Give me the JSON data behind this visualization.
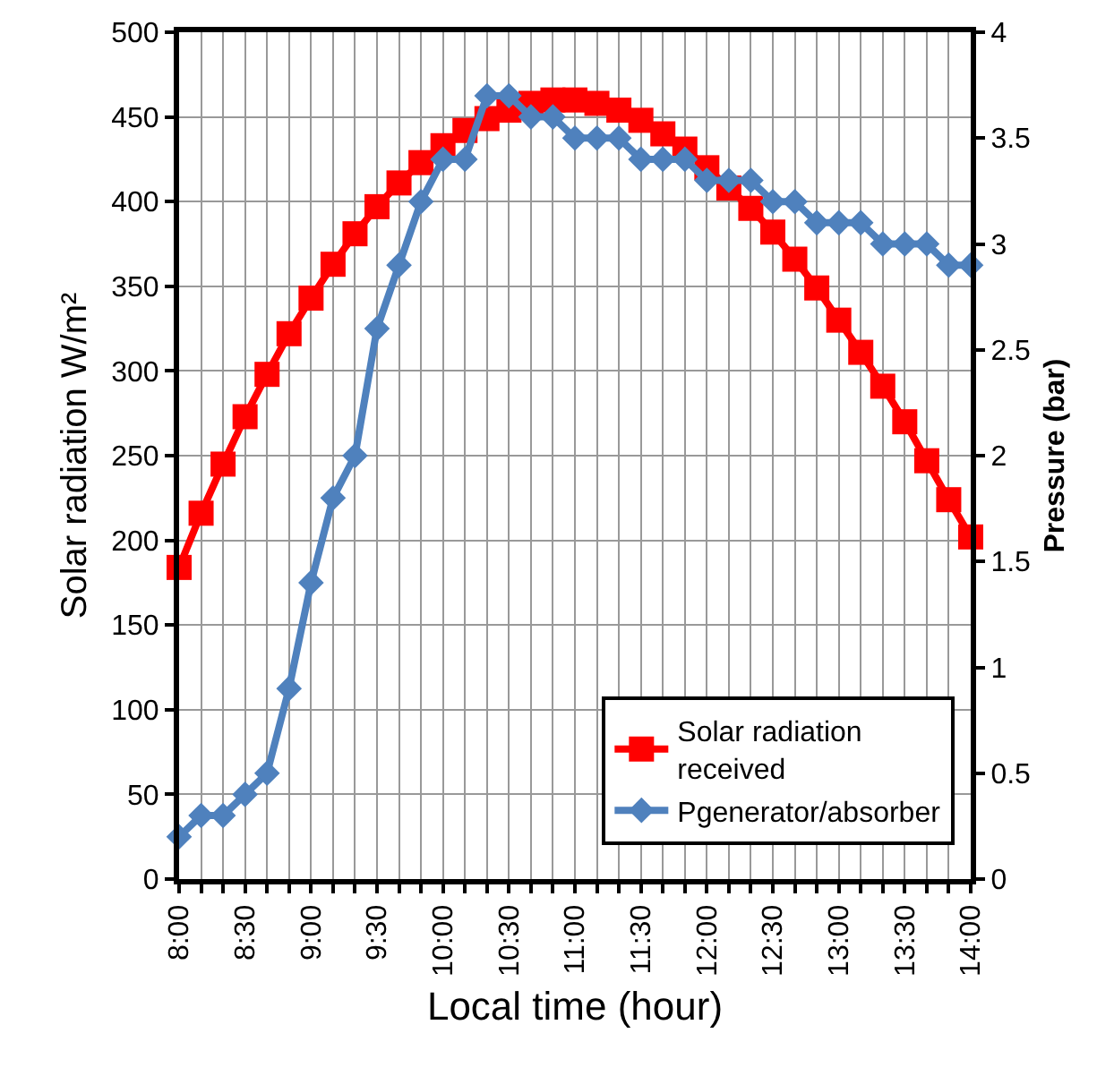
{
  "chart_data": {
    "type": "line",
    "xlabel": "Local time (hour)",
    "ylabel": "Solar radiation W/m²",
    "y2label": "Pressure (bar)",
    "x": [
      8,
      8.1667,
      8.3333,
      8.5,
      8.6667,
      8.8333,
      9,
      9.1667,
      9.3333,
      9.5,
      9.6667,
      9.8333,
      10,
      10.1667,
      10.3333,
      10.5,
      10.6667,
      10.8333,
      11,
      11.1667,
      11.3333,
      11.5,
      11.6667,
      11.8333,
      12,
      12.1667,
      12.3333,
      12.5,
      12.6667,
      12.8333,
      13,
      13.1667,
      13.3333,
      13.5,
      13.6667,
      13.8333,
      14
    ],
    "series": [
      {
        "name": "Solar radiation received",
        "color": "#ff0000",
        "marker": "square",
        "values": [
          184,
          216,
          245,
          273,
          298,
          322,
          343,
          363,
          381,
          397,
          411,
          423,
          433,
          442,
          449,
          454,
          458,
          460,
          460,
          458,
          454,
          448,
          440,
          431,
          420,
          408,
          396,
          382,
          366,
          349,
          330,
          311,
          291,
          270,
          247,
          224,
          202
        ]
      },
      {
        "name": "Pgenerator/absorber",
        "color": "#4f81bd",
        "marker": "diamond",
        "axis": "y2",
        "values": [
          0.2,
          0.3,
          0.3,
          0.4,
          0.5,
          0.9,
          1.4,
          1.8,
          2.0,
          2.6,
          2.9,
          3.2,
          3.4,
          3.4,
          3.7,
          3.7,
          3.6,
          3.6,
          3.5,
          3.5,
          3.5,
          3.4,
          3.4,
          3.4,
          3.3,
          3.3,
          3.3,
          3.2,
          3.2,
          3.1,
          3.1,
          3.1,
          3.0,
          3.0,
          3.0,
          2.9,
          2.9
        ]
      }
    ],
    "xlim": [
      8,
      14
    ],
    "xticks": [
      {
        "value": 8,
        "label": "8:00"
      },
      {
        "value": 8.1667,
        "label": null
      },
      {
        "value": 8.3333,
        "label": null
      },
      {
        "value": 8.5,
        "label": "8:30"
      },
      {
        "value": 8.6667,
        "label": null
      },
      {
        "value": 8.8333,
        "label": null
      },
      {
        "value": 9,
        "label": "9:00"
      },
      {
        "value": 9.1667,
        "label": null
      },
      {
        "value": 9.3333,
        "label": null
      },
      {
        "value": 9.5,
        "label": "9:30"
      },
      {
        "value": 9.6667,
        "label": null
      },
      {
        "value": 9.8333,
        "label": null
      },
      {
        "value": 10,
        "label": "10:00"
      },
      {
        "value": 10.1667,
        "label": null
      },
      {
        "value": 10.3333,
        "label": null
      },
      {
        "value": 10.5,
        "label": "10:30"
      },
      {
        "value": 10.6667,
        "label": null
      },
      {
        "value": 10.8333,
        "label": null
      },
      {
        "value": 11,
        "label": "11:00"
      },
      {
        "value": 11.1667,
        "label": null
      },
      {
        "value": 11.3333,
        "label": null
      },
      {
        "value": 11.5,
        "label": "11:30"
      },
      {
        "value": 11.6667,
        "label": null
      },
      {
        "value": 11.8333,
        "label": null
      },
      {
        "value": 12,
        "label": "12:00"
      },
      {
        "value": 12.1667,
        "label": null
      },
      {
        "value": 12.3333,
        "label": null
      },
      {
        "value": 12.5,
        "label": "12:30"
      },
      {
        "value": 12.6667,
        "label": null
      },
      {
        "value": 12.8333,
        "label": null
      },
      {
        "value": 13,
        "label": "13:00"
      },
      {
        "value": 13.1667,
        "label": null
      },
      {
        "value": 13.3333,
        "label": null
      },
      {
        "value": 13.5,
        "label": "13:30"
      },
      {
        "value": 13.6667,
        "label": null
      },
      {
        "value": 13.8333,
        "label": null
      },
      {
        "value": 14,
        "label": "14:00"
      }
    ],
    "ylim": [
      0,
      500
    ],
    "yticks": [
      0,
      50,
      100,
      150,
      200,
      250,
      300,
      350,
      400,
      450,
      500
    ],
    "y2lim": [
      0,
      4
    ],
    "y2ticks": [
      0,
      0.5,
      1,
      1.5,
      2,
      2.5,
      3,
      3.5,
      4
    ],
    "grid": true,
    "legend": "bottom right",
    "line_style": "solid"
  }
}
